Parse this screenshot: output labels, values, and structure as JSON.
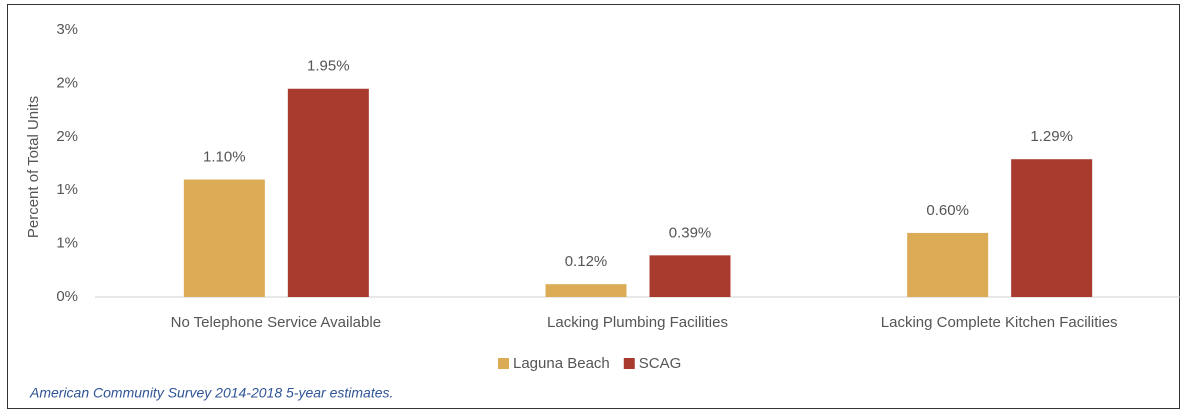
{
  "chart_data": {
    "type": "bar",
    "ylabel": "Percent of Total Units",
    "categories": [
      "No Telephone Service Available",
      "Lacking Plumbing Facilities",
      "Lacking Complete Kitchen Facilities"
    ],
    "series": [
      {
        "name": "Laguna Beach",
        "color": "#dcab55",
        "values": [
          1.1,
          0.12,
          0.6
        ],
        "value_labels": [
          "1.10%",
          "0.12%",
          "0.60%"
        ]
      },
      {
        "name": "SCAG",
        "color": "#a83a2e",
        "values": [
          1.95,
          0.39,
          1.29
        ],
        "value_labels": [
          "1.95%",
          "0.39%",
          "1.29%"
        ]
      }
    ],
    "ylim": [
      0,
      2.5
    ],
    "yticks": [
      {
        "value": 0,
        "label": "0%"
      },
      {
        "value": 0.5,
        "label": "1%"
      },
      {
        "value": 1,
        "label": "1%"
      },
      {
        "value": 1.5,
        "label": "2%"
      },
      {
        "value": 2,
        "label": "2%"
      },
      {
        "value": 2.5,
        "label": "3%"
      }
    ],
    "grid": false,
    "legend": "bottom",
    "source": "American Community Survey 2014-2018 5-year estimates."
  }
}
